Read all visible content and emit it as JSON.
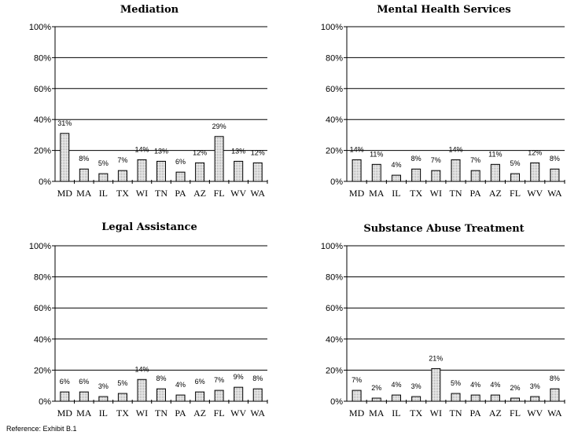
{
  "footer": "Reference: Exhibit B.1",
  "colors": {
    "bar_fill": "#d8d8d8",
    "bar_stroke": "#000000",
    "gridline": "#000000"
  },
  "chart_data": [
    {
      "type": "bar",
      "title": "Mediation",
      "categories": [
        "MD",
        "MA",
        "IL",
        "TX",
        "WI",
        "TN",
        "PA",
        "AZ",
        "FL",
        "WV",
        "WA"
      ],
      "values": [
        31,
        8,
        5,
        7,
        14,
        13,
        6,
        12,
        29,
        13,
        12
      ],
      "data_labels": [
        "31%",
        "8%",
        "5%",
        "7%",
        "14%",
        "13%",
        "6%",
        "12%",
        "29%",
        "13%",
        "12%"
      ],
      "ylim": [
        0,
        100
      ],
      "yticks": [
        "0%",
        "20%",
        "40%",
        "60%",
        "80%",
        "100%"
      ],
      "grid": true
    },
    {
      "type": "bar",
      "title": "Mental Health Services",
      "categories": [
        "MD",
        "MA",
        "IL",
        "TX",
        "WI",
        "TN",
        "PA",
        "AZ",
        "FL",
        "WV",
        "WA"
      ],
      "values": [
        14,
        11,
        4,
        8,
        7,
        14,
        7,
        11,
        5,
        12,
        8
      ],
      "data_labels": [
        "14%",
        "11%",
        "4%",
        "8%",
        "7%",
        "14%",
        "7%",
        "11%",
        "5%",
        "12%",
        "8%"
      ],
      "ylim": [
        0,
        100
      ],
      "yticks": [
        "0%",
        "20%",
        "40%",
        "60%",
        "80%",
        "100%"
      ],
      "grid": true
    },
    {
      "type": "bar",
      "title": "Legal Assistance",
      "categories": [
        "MD",
        "MA",
        "IL",
        "TX",
        "WI",
        "TN",
        "PA",
        "AZ",
        "FL",
        "WV",
        "WA"
      ],
      "values": [
        6,
        6,
        3,
        5,
        14,
        8,
        4,
        6,
        7,
        9,
        8
      ],
      "data_labels": [
        "6%",
        "6%",
        "3%",
        "5%",
        "14%",
        "8%",
        "4%",
        "6%",
        "7%",
        "9%",
        "8%"
      ],
      "ylim": [
        0,
        100
      ],
      "yticks": [
        "0%",
        "20%",
        "40%",
        "60%",
        "80%",
        "100%"
      ],
      "grid": true
    },
    {
      "type": "bar",
      "title": "Substance Abuse Treatment",
      "categories": [
        "MD",
        "MA",
        "IL",
        "TX",
        "WI",
        "TN",
        "PA",
        "AZ",
        "FL",
        "WV",
        "WA"
      ],
      "values": [
        7,
        2,
        4,
        3,
        21,
        5,
        4,
        4,
        2,
        3,
        8
      ],
      "data_labels": [
        "7%",
        "2%",
        "4%",
        "3%",
        "21%",
        "5%",
        "4%",
        "4%",
        "2%",
        "3%",
        "8%"
      ],
      "ylim": [
        0,
        100
      ],
      "yticks": [
        "0%",
        "20%",
        "40%",
        "60%",
        "80%",
        "100%"
      ],
      "grid": true
    }
  ]
}
